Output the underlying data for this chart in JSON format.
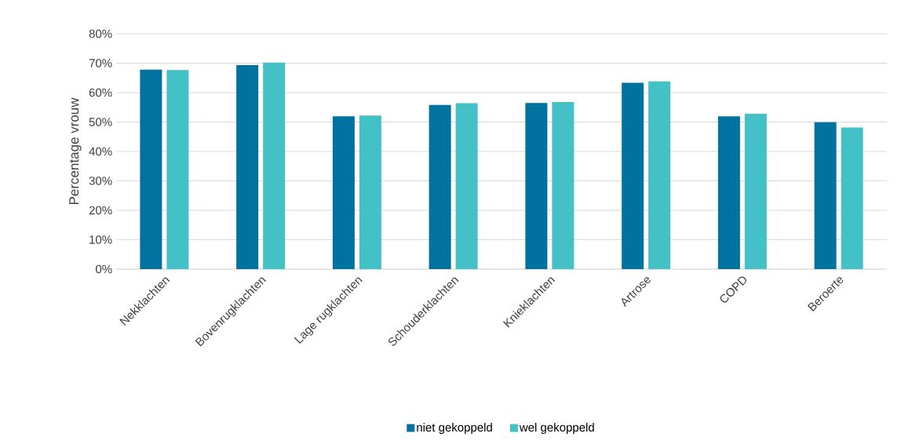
{
  "chart_data": {
    "type": "bar",
    "ylabel": "Percentage vrouw",
    "categories": [
      "Nekklachten",
      "Bovenrugklachten",
      "Lage rugklachten",
      "Schouderklachten",
      "Knieklachten",
      "Artrose",
      "COPD",
      "Beroerte"
    ],
    "series": [
      {
        "name": "niet gekoppeld",
        "color": "#00729f",
        "values": [
          67.8,
          69.3,
          51.9,
          55.8,
          56.5,
          63.3,
          51.9,
          49.9
        ]
      },
      {
        "name": "wel gekoppeld",
        "color": "#43c1c6",
        "values": [
          67.7,
          70.2,
          52.2,
          56.4,
          56.8,
          63.8,
          52.8,
          48.1
        ]
      }
    ],
    "ylim": [
      0,
      80
    ],
    "yticks": [
      {
        "value": 0,
        "label": "0%"
      },
      {
        "value": 10,
        "label": "10%"
      },
      {
        "value": 20,
        "label": "20%"
      },
      {
        "value": 30,
        "label": "30%"
      },
      {
        "value": 40,
        "label": "40%"
      },
      {
        "value": 50,
        "label": "50%"
      },
      {
        "value": 60,
        "label": "60%"
      },
      {
        "value": 70,
        "label": "70%"
      },
      {
        "value": 80,
        "label": "80%"
      }
    ],
    "grid": "y",
    "legend": "bottom"
  }
}
